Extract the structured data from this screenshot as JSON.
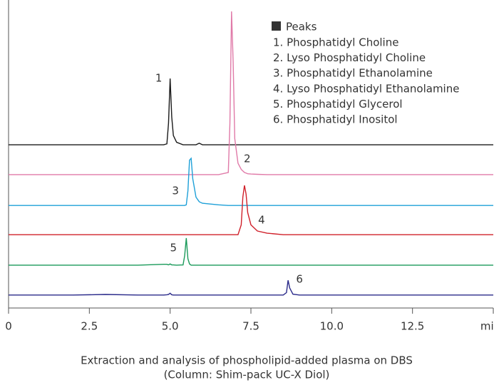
{
  "chart_data": {
    "type": "line",
    "legend": {
      "title": "Peaks",
      "color": "#333333",
      "items": [
        "1. Phosphatidyl Choline",
        "2. Lyso Phosphatidyl Choline",
        "3. Phosphatidyl Ethanolamine",
        "4. Lyso Phosphatidyl Ethanolamine",
        "5. Phosphatidyl Glycerol",
        "6. Phosphatidyl Inositol"
      ]
    },
    "caption": [
      "Extraction and analysis of phospholipid-added plasma on DBS",
      "(Column: Shim-pack UC-X Diol)"
    ],
    "x": [
      0,
      1,
      2,
      3,
      4,
      4.8,
      4.9,
      4.95,
      5.0,
      5.05,
      5.1,
      5.2,
      5.4,
      5.45,
      5.5,
      5.55,
      5.6,
      5.65,
      5.7,
      5.8,
      5.9,
      6.0,
      6.5,
      6.8,
      6.85,
      6.9,
      6.95,
      7.0,
      7.1,
      7.2,
      7.25,
      7.3,
      7.35,
      7.4,
      7.5,
      7.7,
      8.0,
      8.5,
      8.6,
      8.65,
      8.7,
      8.8,
      9,
      10,
      12,
      15
    ],
    "xlim": [
      0,
      15
    ],
    "xticks": [
      0,
      2.5,
      {
        "value": 5,
        "label": "5.0"
      },
      {
        "value": 7.5,
        "label": "7.5"
      },
      {
        "value": 10,
        "label": "10.0"
      },
      {
        "value": 12.5,
        "label": "12.5"
      },
      {
        "value": 15,
        "label": "min"
      }
    ],
    "ylim": [
      0,
      100
    ],
    "series": [
      {
        "peak_label": "1",
        "color": "#1a1a1a",
        "values": [
          53,
          53,
          53,
          53,
          53,
          53,
          53.3,
          60,
          74.5,
          62,
          56,
          53.8,
          53,
          53,
          53,
          53,
          53,
          53,
          53,
          53,
          53.5,
          53,
          53,
          53,
          53,
          53,
          53,
          53,
          53,
          53,
          53,
          53,
          53,
          53,
          53,
          53,
          53,
          53,
          53,
          53,
          53,
          53,
          53,
          53,
          53,
          53
        ]
      },
      {
        "peak_label": "2",
        "color": "#e07aa8",
        "values": [
          43.3,
          43.3,
          43.3,
          43.3,
          43.3,
          43.3,
          43.3,
          43.3,
          43.3,
          43.3,
          43.3,
          43.3,
          43.3,
          43.3,
          43.3,
          43.3,
          43.3,
          43.3,
          43.3,
          43.3,
          43.3,
          43.3,
          43.3,
          44,
          60,
          96.3,
          80,
          55,
          47,
          45,
          44.5,
          44,
          43.8,
          43.6,
          43.5,
          43.4,
          43.3,
          43.3,
          43.3,
          43.3,
          43.3,
          43.3,
          43.3,
          43.3,
          43.3,
          43.3
        ]
      },
      {
        "peak_label": "3",
        "color": "#1ea0d8",
        "values": [
          33.3,
          33.3,
          33.3,
          33.3,
          33.3,
          33.3,
          33.3,
          33.3,
          33.3,
          33.3,
          33.3,
          33.3,
          33.3,
          33.3,
          33.5,
          38,
          48,
          48.6,
          42,
          36,
          34.5,
          34,
          33.5,
          33.3,
          33.3,
          33.3,
          33.3,
          33.3,
          33.3,
          33.3,
          33.3,
          33.3,
          33.3,
          33.3,
          33.3,
          33.3,
          33.3,
          33.3,
          33.3,
          33.3,
          33.3,
          33.3,
          33.3,
          33.3,
          33.3,
          33.3
        ]
      },
      {
        "peak_label": "4",
        "color": "#d0202a",
        "values": [
          23.8,
          23.8,
          23.8,
          23.8,
          23.8,
          23.8,
          23.8,
          23.8,
          23.8,
          23.8,
          23.8,
          23.8,
          23.8,
          23.8,
          23.8,
          23.8,
          23.8,
          23.8,
          23.8,
          23.8,
          23.8,
          23.8,
          23.8,
          23.8,
          23.8,
          23.8,
          23.8,
          23.8,
          23.8,
          27,
          36,
          39.8,
          37,
          31,
          27,
          25,
          24.3,
          23.8,
          23.8,
          23.8,
          23.8,
          23.8,
          23.8,
          23.8,
          23.8,
          23.8
        ]
      },
      {
        "peak_label": "5",
        "color": "#1a9a5a",
        "values": [
          13.9,
          13.9,
          13.9,
          13.9,
          13.9,
          14.2,
          14.2,
          14,
          14.3,
          14,
          14,
          13.9,
          14,
          17,
          22.7,
          16,
          14.3,
          13.9,
          13.9,
          13.9,
          13.9,
          13.9,
          13.9,
          13.9,
          13.9,
          13.9,
          13.9,
          13.9,
          13.9,
          13.9,
          13.9,
          13.9,
          13.9,
          13.9,
          13.9,
          13.9,
          13.9,
          13.9,
          13.9,
          13.9,
          13.9,
          13.9,
          13.9,
          13.9,
          13.9,
          13.9
        ]
      },
      {
        "peak_label": "6",
        "color": "#2a2a8a",
        "values": [
          4.2,
          4.2,
          4.2,
          4.4,
          4.2,
          4.2,
          4.3,
          4.4,
          4.8,
          4.3,
          4.2,
          4.2,
          4.2,
          4.2,
          4.2,
          4.2,
          4.2,
          4.2,
          4.2,
          4.2,
          4.2,
          4.2,
          4.2,
          4.2,
          4.2,
          4.2,
          4.2,
          4.2,
          4.2,
          4.2,
          4.2,
          4.2,
          4.2,
          4.2,
          4.2,
          4.2,
          4.2,
          4.2,
          5,
          9.0,
          6.5,
          4.5,
          4.2,
          4.2,
          4.2,
          4.2
        ]
      }
    ]
  }
}
